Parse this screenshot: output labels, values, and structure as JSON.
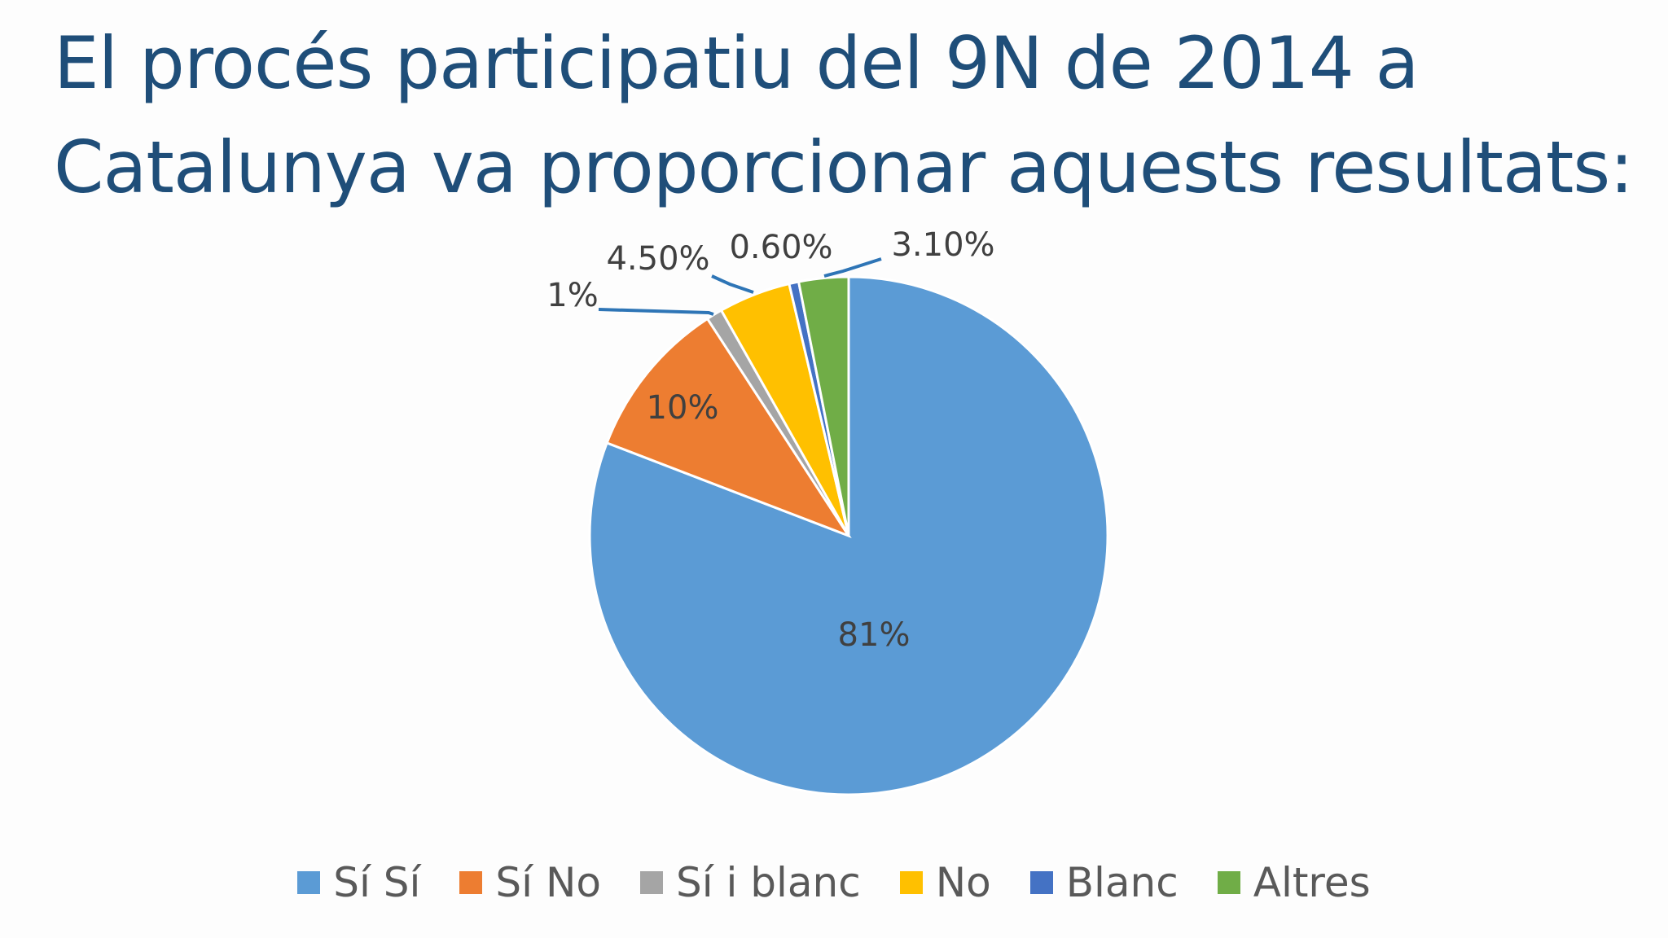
{
  "slide": {
    "title_line1": "El procés participatiu del 9N de 2014 a",
    "title_line2": "Catalunya va proporcionar aquests resultats:"
  },
  "chart_data": {
    "type": "pie",
    "start_angle_deg": 0,
    "direction": "clockwise",
    "slices": [
      {
        "name": "Sí Sí",
        "value": 81,
        "label": "81%",
        "color": "#5b9bd5"
      },
      {
        "name": "Sí No",
        "value": 10,
        "label": "10%",
        "color": "#ed7d31"
      },
      {
        "name": "Sí i blanc",
        "value": 1,
        "label": "1%",
        "color": "#a5a5a5"
      },
      {
        "name": "No",
        "value": 4.5,
        "label": "4.50%",
        "color": "#ffc000"
      },
      {
        "name": "Blanc",
        "value": 0.6,
        "label": "0.60%",
        "color": "#4472c4"
      },
      {
        "name": "Altres",
        "value": 3.1,
        "label": "3.10%",
        "color": "#70ad47"
      }
    ],
    "legend_position": "bottom",
    "label_color": "#404040",
    "leader_line_color": "#2e75b6"
  }
}
